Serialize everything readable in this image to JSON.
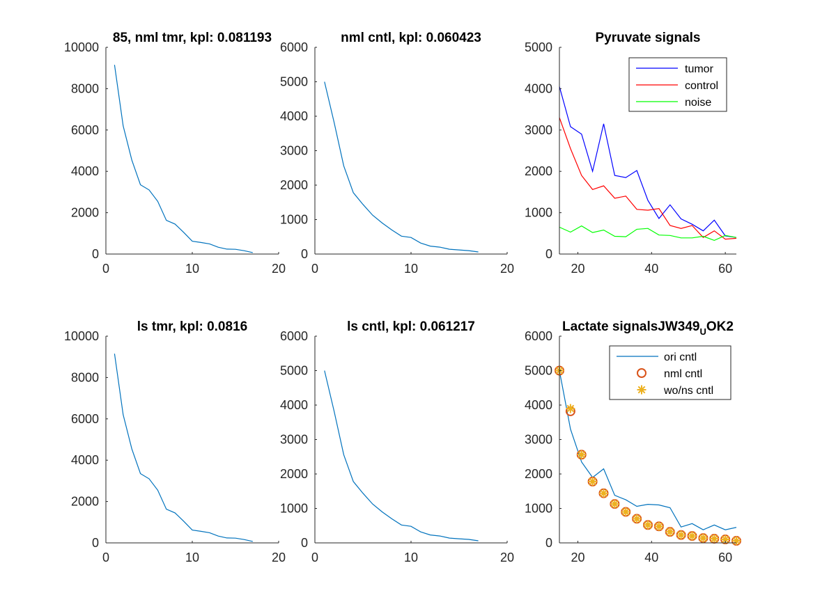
{
  "chart_data": [
    {
      "type": "line",
      "title": "85, nml tmr, kpl: 0.081193",
      "xlim": [
        0,
        20
      ],
      "ylim": [
        0,
        10000
      ],
      "xticks": [
        0,
        10,
        20
      ],
      "yticks": [
        0,
        2000,
        4000,
        6000,
        8000,
        10000
      ],
      "series": [
        {
          "color": "#0072bd",
          "marker": "none",
          "x": [
            1,
            2,
            3,
            4,
            5,
            6,
            7,
            8,
            9,
            10,
            11,
            12,
            13,
            14,
            15,
            16,
            17
          ],
          "y": [
            9150,
            6200,
            4550,
            3350,
            3100,
            2550,
            1630,
            1450,
            1050,
            620,
            560,
            490,
            330,
            240,
            230,
            160,
            70
          ]
        }
      ]
    },
    {
      "type": "line",
      "title": "nml cntl, kpl: 0.060423",
      "xlim": [
        0,
        20
      ],
      "ylim": [
        0,
        6000
      ],
      "xticks": [
        0,
        10,
        20
      ],
      "yticks": [
        0,
        1000,
        2000,
        3000,
        4000,
        5000,
        6000
      ],
      "series": [
        {
          "color": "#0072bd",
          "marker": "none",
          "x": [
            1,
            2,
            3,
            4,
            5,
            6,
            7,
            8,
            9,
            10,
            11,
            12,
            13,
            14,
            15,
            16,
            17
          ],
          "y": [
            5000,
            3820,
            2560,
            1780,
            1440,
            1130,
            900,
            700,
            520,
            480,
            320,
            230,
            200,
            140,
            120,
            100,
            60
          ]
        }
      ]
    },
    {
      "type": "line",
      "title": "Pyruvate signals",
      "xlim": [
        15,
        63
      ],
      "ylim": [
        0,
        5000
      ],
      "xticks": [
        20,
        40,
        60
      ],
      "yticks": [
        0,
        1000,
        2000,
        3000,
        4000,
        5000
      ],
      "legend": {
        "position": "top-right",
        "entries": [
          "tumor",
          "control",
          "noise"
        ],
        "markers": [
          "line",
          "line",
          "line"
        ]
      },
      "series": [
        {
          "name": "tumor",
          "color": "#0000ff",
          "marker": "none",
          "x": [
            15,
            18,
            21,
            24,
            27,
            30,
            33,
            36,
            39,
            42,
            45,
            48,
            51,
            54,
            57,
            60,
            63
          ],
          "y": [
            4050,
            3080,
            2900,
            2000,
            3150,
            1900,
            1850,
            2020,
            1300,
            860,
            1190,
            850,
            720,
            560,
            820,
            440,
            400
          ]
        },
        {
          "name": "control",
          "color": "#ff0000",
          "marker": "none",
          "x": [
            15,
            18,
            21,
            24,
            27,
            30,
            33,
            36,
            39,
            42,
            45,
            48,
            51,
            54,
            57,
            60,
            63
          ],
          "y": [
            3300,
            2550,
            1900,
            1560,
            1650,
            1350,
            1400,
            1080,
            1060,
            1100,
            690,
            620,
            690,
            400,
            560,
            360,
            380
          ]
        },
        {
          "name": "noise",
          "color": "#00ff00",
          "marker": "none",
          "x": [
            15,
            18,
            21,
            24,
            27,
            30,
            33,
            36,
            39,
            42,
            45,
            48,
            51,
            54,
            57,
            60,
            63
          ],
          "y": [
            650,
            530,
            680,
            520,
            580,
            430,
            420,
            600,
            620,
            460,
            450,
            390,
            390,
            430,
            330,
            450,
            400
          ]
        }
      ]
    },
    {
      "type": "line",
      "title": "ls tmr, kpl: 0.0816",
      "xlim": [
        0,
        20
      ],
      "ylim": [
        0,
        10000
      ],
      "xticks": [
        0,
        10,
        20
      ],
      "yticks": [
        0,
        2000,
        4000,
        6000,
        8000,
        10000
      ],
      "series": [
        {
          "color": "#0072bd",
          "marker": "none",
          "x": [
            1,
            2,
            3,
            4,
            5,
            6,
            7,
            8,
            9,
            10,
            11,
            12,
            13,
            14,
            15,
            16,
            17
          ],
          "y": [
            9150,
            6200,
            4550,
            3350,
            3100,
            2550,
            1630,
            1450,
            1050,
            620,
            560,
            490,
            330,
            240,
            230,
            160,
            70
          ]
        }
      ]
    },
    {
      "type": "line",
      "title": "ls cntl, kpl: 0.061217",
      "xlim": [
        0,
        20
      ],
      "ylim": [
        0,
        6000
      ],
      "xticks": [
        0,
        10,
        20
      ],
      "yticks": [
        0,
        1000,
        2000,
        3000,
        4000,
        5000,
        6000
      ],
      "series": [
        {
          "color": "#0072bd",
          "marker": "none",
          "x": [
            1,
            2,
            3,
            4,
            5,
            6,
            7,
            8,
            9,
            10,
            11,
            12,
            13,
            14,
            15,
            16,
            17
          ],
          "y": [
            5000,
            3820,
            2560,
            1780,
            1440,
            1130,
            900,
            700,
            520,
            480,
            320,
            230,
            200,
            140,
            120,
            100,
            60
          ]
        }
      ]
    },
    {
      "type": "line",
      "title": "Lactate signalsJW349",
      "title_subscript": "U",
      "title_suffix": "OK2",
      "xlim": [
        15,
        63
      ],
      "ylim": [
        0,
        6000
      ],
      "xticks": [
        20,
        40,
        60
      ],
      "yticks": [
        0,
        1000,
        2000,
        3000,
        4000,
        5000,
        6000
      ],
      "legend": {
        "position": "top-right",
        "entries": [
          "ori cntl",
          "nml cntl",
          "wo/ns cntl"
        ],
        "markers": [
          "line",
          "circle",
          "asterisk"
        ]
      },
      "series": [
        {
          "name": "ori cntl",
          "color": "#0072bd",
          "marker": "none",
          "x": [
            15,
            18,
            21,
            24,
            27,
            30,
            33,
            36,
            39,
            42,
            45,
            48,
            51,
            54,
            57,
            60,
            63
          ],
          "y": [
            5000,
            3300,
            2350,
            1900,
            2150,
            1380,
            1250,
            1060,
            1120,
            1100,
            1020,
            460,
            560,
            380,
            520,
            380,
            450
          ]
        },
        {
          "name": "nml cntl",
          "color": "#d95319",
          "marker": "circle",
          "x": [
            15,
            18,
            21,
            24,
            27,
            30,
            33,
            36,
            39,
            42,
            45,
            48,
            51,
            54,
            57,
            60,
            63
          ],
          "y": [
            5000,
            3820,
            2560,
            1780,
            1440,
            1130,
            900,
            700,
            520,
            480,
            320,
            230,
            200,
            140,
            120,
            100,
            60
          ]
        },
        {
          "name": "wo/ns cntl",
          "color": "#edb120",
          "marker": "asterisk",
          "x": [
            15,
            18,
            21,
            24,
            27,
            30,
            33,
            36,
            39,
            42,
            45,
            48,
            51,
            54,
            57,
            60,
            63
          ],
          "y": [
            5000,
            3900,
            2560,
            1780,
            1440,
            1130,
            900,
            700,
            520,
            480,
            320,
            230,
            200,
            140,
            120,
            100,
            60
          ]
        }
      ]
    }
  ]
}
